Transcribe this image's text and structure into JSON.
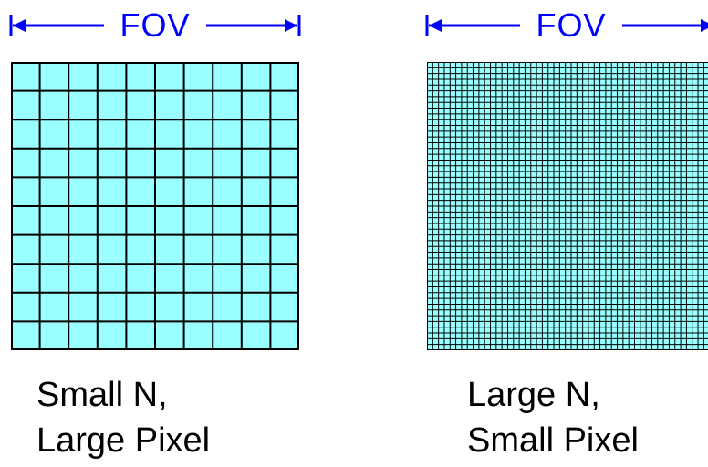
{
  "panels": [
    {
      "fov_label": "FOV",
      "grid_cells": 10,
      "fill_color": "#99ffff",
      "caption_line1": "Small N,",
      "caption_line2": "Large Pixel"
    },
    {
      "fov_label": "FOV",
      "grid_cells": 50,
      "fill_color": "#99ffff",
      "caption_line1": "Large N,",
      "caption_line2": "Small Pixel"
    }
  ],
  "colors": {
    "arrow": "#0000ff",
    "grid_line": "#000000"
  }
}
